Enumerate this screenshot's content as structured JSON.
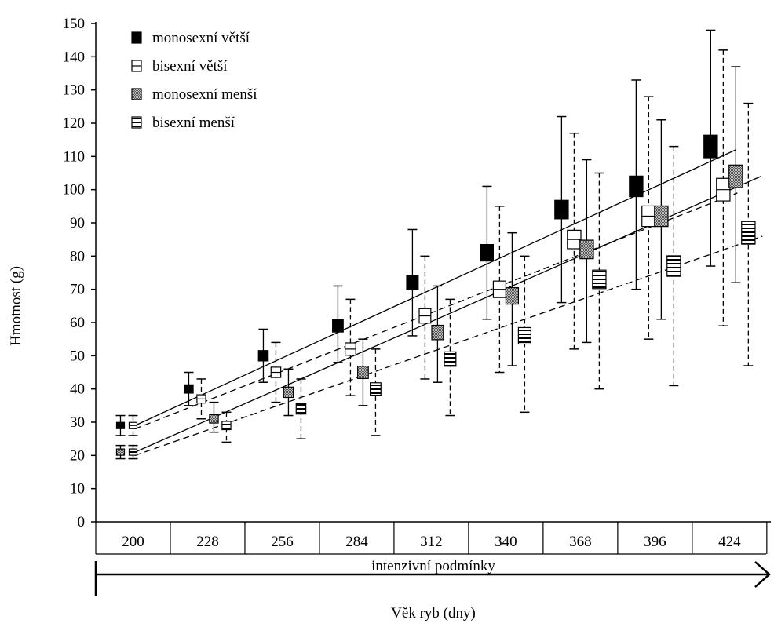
{
  "chart_data": {
    "type": "box",
    "ylabel": "Hmotnost (g)",
    "xlabel": "Věk ryb (dny)",
    "condition_label": "intenzivní podmínky",
    "categories": [
      "200",
      "228",
      "256",
      "284",
      "312",
      "340",
      "368",
      "396",
      "424"
    ],
    "y_ticks": [
      "0",
      "10",
      "20",
      "30",
      "40",
      "50",
      "60",
      "70",
      "80",
      "90",
      "100",
      "110",
      "120",
      "130",
      "140",
      "150"
    ],
    "ylim": [
      0,
      150
    ],
    "colors": {
      "solid": "#000000",
      "gray": "#888888",
      "white": "#ffffff"
    },
    "series": [
      {
        "name": "monosexní větší",
        "marker": "filled",
        "line": "solid",
        "mean": [
          29,
          40,
          50,
          59,
          72,
          81,
          94,
          101,
          113
        ],
        "upper": [
          32,
          45,
          58,
          71,
          88,
          101,
          122,
          133,
          148
        ],
        "lower": [
          26,
          35,
          42,
          48,
          56,
          61,
          66,
          70,
          77
        ]
      },
      {
        "name": "bisexní větší",
        "marker": "open",
        "line": "dashed",
        "mean": [
          29,
          37,
          45,
          52,
          62,
          70,
          85,
          92,
          100
        ],
        "upper": [
          32,
          43,
          54,
          67,
          80,
          95,
          117,
          128,
          142
        ],
        "lower": [
          26,
          31,
          36,
          38,
          43,
          45,
          52,
          55,
          59
        ]
      },
      {
        "name": "monosexní menší",
        "marker": "gray",
        "line": "solid",
        "mean": [
          21,
          31,
          39,
          45,
          57,
          68,
          82,
          92,
          104
        ],
        "upper": [
          23,
          36,
          46,
          55,
          71,
          87,
          109,
          121,
          137
        ],
        "lower": [
          19,
          27,
          32,
          35,
          42,
          47,
          54,
          61,
          72
        ]
      },
      {
        "name": "bisexní menší",
        "marker": "striped",
        "line": "dashed",
        "mean": [
          21,
          29,
          34,
          40,
          49,
          56,
          73,
          77,
          87
        ],
        "upper": [
          23,
          33,
          43,
          52,
          67,
          80,
          105,
          113,
          126
        ],
        "lower": [
          19,
          24,
          25,
          26,
          32,
          33,
          40,
          41,
          47
        ]
      }
    ],
    "trend_lines": [
      {
        "series": "monosexní větší",
        "start": 29,
        "end": 112,
        "style": "solid"
      },
      {
        "series": "bisexní větší",
        "start": 28,
        "end": 99,
        "style": "dashed"
      },
      {
        "series": "monosexní menší",
        "start": 21,
        "end": 104,
        "style": "solid"
      },
      {
        "series": "bisexní menší",
        "start": 20,
        "end": 86,
        "style": "dashed"
      }
    ]
  }
}
